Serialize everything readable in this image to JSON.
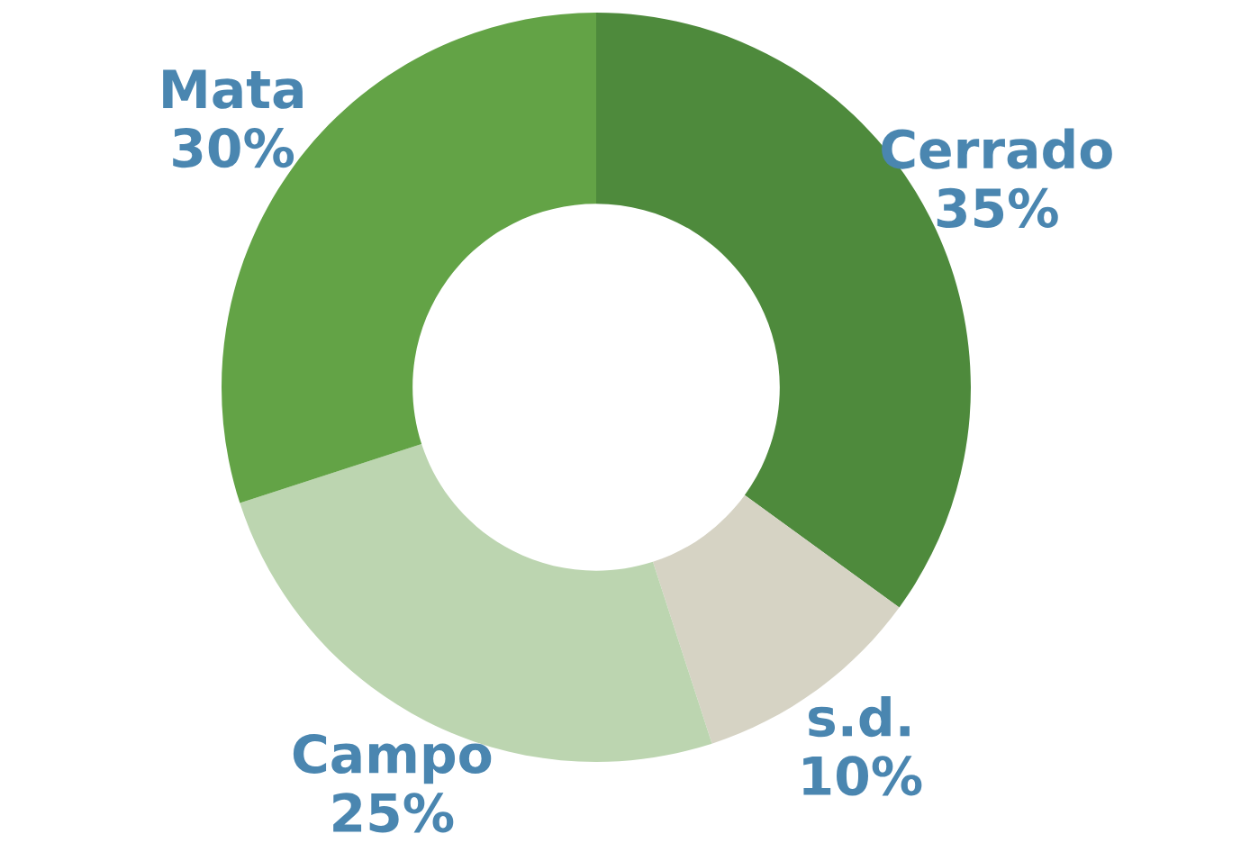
{
  "chart_data": {
    "type": "donut",
    "categories": [
      "Cerrado",
      "s.d.",
      "Campo",
      "Mata"
    ],
    "values": [
      35,
      10,
      25,
      30
    ],
    "colors": [
      "#4e8a3c",
      "#d6d3c4",
      "#bcd5b0",
      "#63a346"
    ],
    "value_labels": [
      "35%",
      "10%",
      "25%",
      "30%"
    ]
  }
}
